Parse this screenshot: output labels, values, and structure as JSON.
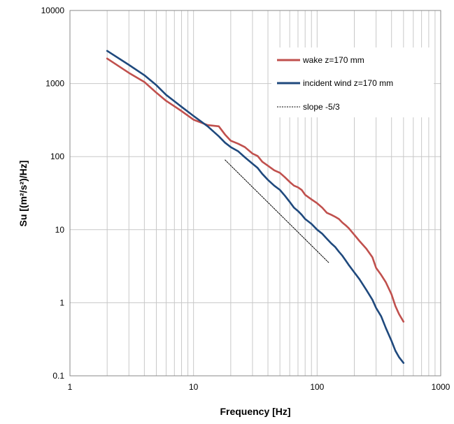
{
  "chart_data": {
    "type": "line",
    "x_scale": "log",
    "y_scale": "log",
    "xlim": [
      1,
      1000
    ],
    "ylim": [
      0.1,
      10000
    ],
    "x_ticks": [
      1,
      10,
      100,
      1000
    ],
    "x_tick_labels": [
      "1",
      "10",
      "100",
      "1000"
    ],
    "y_ticks": [
      0.1,
      1,
      10,
      100,
      1000,
      10000
    ],
    "y_tick_labels": [
      "0.1",
      "1",
      "10",
      "100",
      "1000",
      "10000"
    ],
    "xlabel": "Frequency [Hz]",
    "ylabel": "Su [(m²/s²)/Hz]",
    "grid": "major and minor, light gray",
    "legend_position": "top-right",
    "series": [
      {
        "name": "wake z=170 mm",
        "color": "#c0504d",
        "x": [
          2,
          3,
          4,
          5,
          6,
          8,
          10,
          13,
          16,
          18,
          20,
          23,
          26,
          30,
          33,
          36,
          40,
          45,
          50,
          55,
          60,
          65,
          70,
          75,
          80,
          90,
          100,
          110,
          120,
          130,
          140,
          150,
          160,
          170,
          180,
          200,
          220,
          250,
          280,
          300,
          330,
          360,
          400,
          430,
          460,
          500
        ],
        "y": [
          2200,
          1400,
          1050,
          750,
          580,
          420,
          320,
          270,
          260,
          200,
          165,
          150,
          135,
          110,
          102,
          85,
          75,
          65,
          60,
          52,
          45,
          40,
          38,
          35,
          30,
          26,
          23,
          20,
          17,
          16,
          15,
          14,
          12.5,
          11.5,
          10.5,
          8.5,
          7,
          5.5,
          4.2,
          3,
          2.4,
          1.9,
          1.3,
          0.9,
          0.7,
          0.55
        ]
      },
      {
        "name": "incident wind  z=170 mm",
        "color": "#1f497d",
        "x": [
          2,
          3,
          4,
          5,
          6,
          8,
          10,
          13,
          16,
          18,
          20,
          23,
          26,
          30,
          33,
          36,
          40,
          45,
          50,
          55,
          60,
          65,
          70,
          75,
          80,
          90,
          100,
          110,
          120,
          130,
          140,
          150,
          160,
          170,
          180,
          200,
          220,
          250,
          280,
          300,
          330,
          360,
          400,
          430,
          460,
          500
        ],
        "y": [
          2800,
          1800,
          1300,
          950,
          700,
          480,
          360,
          260,
          190,
          155,
          135,
          118,
          98,
          80,
          70,
          58,
          48,
          40,
          35,
          29,
          24,
          20,
          18,
          16,
          14,
          12,
          10,
          8.8,
          7.5,
          6.5,
          5.8,
          5,
          4.4,
          3.8,
          3.3,
          2.6,
          2.1,
          1.5,
          1.1,
          0.85,
          0.65,
          0.45,
          0.3,
          0.22,
          0.18,
          0.15
        ]
      },
      {
        "name": "slope -5/3",
        "color": "#000000",
        "style": "dashed",
        "x": [
          18,
          125
        ],
        "y": [
          90,
          3.5
        ]
      }
    ]
  }
}
